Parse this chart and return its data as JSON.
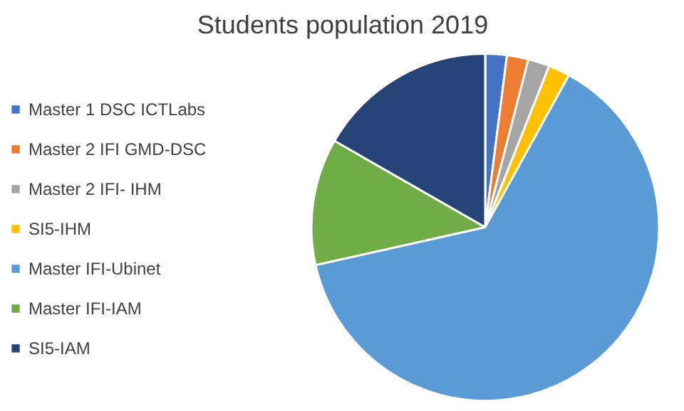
{
  "chart_data": {
    "type": "pie",
    "title": "Students population 2019",
    "categories": [
      "Master 1 DSC ICTLabs",
      "Master 2 IFI GMD-DSC",
      "Master 2 IFI- IHM",
      "SI5-IHM",
      "Master IFI-Ubinet",
      "Master IFI-IAM",
      "SI5-IAM"
    ],
    "values": [
      2,
      2,
      2,
      2,
      63.5,
      11.8,
      16.7
    ],
    "colors": [
      "#4472c4",
      "#ed7d31",
      "#a5a5a5",
      "#ffc000",
      "#5b9bd5",
      "#70ad47",
      "#264478"
    ],
    "legend": "left"
  }
}
